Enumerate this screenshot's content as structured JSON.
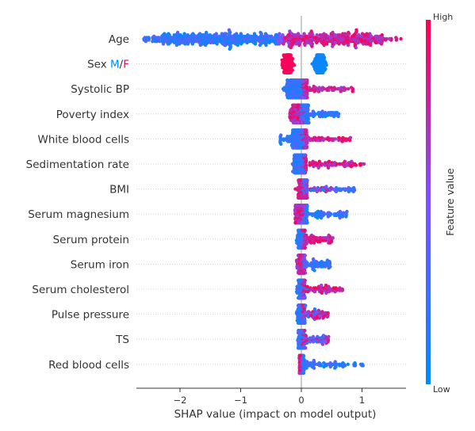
{
  "chart_data": {
    "type": "scatter",
    "subtype": "shap-beeswarm-summary",
    "xlabel": "SHAP value (impact on model output)",
    "xlim": [
      -2.8,
      1.8
    ],
    "x_ticks": [
      -2,
      -1,
      0,
      1
    ],
    "x_tick_labels": [
      "−2",
      "−1",
      "0",
      "1"
    ],
    "features": [
      {
        "name": "Age",
        "min": -2.6,
        "max": 1.65,
        "low_range": [
          -2.6,
          -0.4
        ],
        "high_range": [
          -0.3,
          1.65
        ],
        "core": [
          -2.3,
          1.35
        ]
      },
      {
        "name": "Sex",
        "label_parts": [
          "Sex ",
          "M",
          "/",
          "F"
        ],
        "min": -0.35,
        "max": 0.5,
        "clusters": [
          {
            "center": -0.22,
            "spread": 0.12,
            "color": "high"
          },
          {
            "center": 0.3,
            "spread": 0.14,
            "color": "low"
          }
        ]
      },
      {
        "name": "Systolic BP",
        "min": -0.3,
        "max": 0.85,
        "low_range": [
          -0.3,
          0.05
        ],
        "high_range": [
          0.0,
          0.85
        ],
        "core": [
          -0.25,
          0.1
        ]
      },
      {
        "name": "Poverty index",
        "min": -0.2,
        "max": 0.62,
        "low_range": [
          -0.05,
          0.62
        ],
        "high_range": [
          -0.2,
          0.05
        ],
        "core": [
          -0.15,
          0.12
        ]
      },
      {
        "name": "White blood cells",
        "min": -0.35,
        "max": 0.82,
        "low_range": [
          -0.35,
          0.05
        ],
        "high_range": [
          0.0,
          0.82
        ],
        "core": [
          -0.15,
          0.1
        ]
      },
      {
        "name": "Sedimentation rate",
        "min": -0.15,
        "max": 1.05,
        "low_range": [
          -0.15,
          0.05
        ],
        "high_range": [
          0.0,
          1.05
        ],
        "core": [
          -0.12,
          0.08
        ]
      },
      {
        "name": "BMI",
        "min": -0.1,
        "max": 0.88,
        "low_range": [
          0.0,
          0.88
        ],
        "high_range": [
          -0.1,
          0.55
        ],
        "core": [
          -0.05,
          0.1
        ]
      },
      {
        "name": "Serum magnesium",
        "min": -0.12,
        "max": 0.76,
        "low_range": [
          0.0,
          0.76
        ],
        "high_range": [
          -0.12,
          0.05
        ],
        "core": [
          -0.1,
          0.1
        ]
      },
      {
        "name": "Serum protein",
        "min": -0.08,
        "max": 0.52,
        "low_range": [
          -0.08,
          0.05
        ],
        "high_range": [
          0.0,
          0.52
        ],
        "core": [
          -0.05,
          0.06
        ]
      },
      {
        "name": "Serum iron",
        "min": -0.08,
        "max": 0.48,
        "low_range": [
          0.0,
          0.48
        ],
        "high_range": [
          -0.08,
          0.08
        ],
        "core": [
          -0.05,
          0.06
        ]
      },
      {
        "name": "Serum cholesterol",
        "min": -0.08,
        "max": 0.68,
        "low_range": [
          -0.08,
          0.1
        ],
        "high_range": [
          0.0,
          0.68
        ],
        "core": [
          -0.05,
          0.06
        ]
      },
      {
        "name": "Pulse pressure",
        "min": -0.08,
        "max": 0.47,
        "low_range": [
          -0.08,
          0.3
        ],
        "high_range": [
          0.0,
          0.47
        ],
        "core": [
          -0.05,
          0.06
        ]
      },
      {
        "name": "TS",
        "min": -0.06,
        "max": 0.45,
        "low_range": [
          -0.06,
          0.4
        ],
        "high_range": [
          0.0,
          0.45
        ],
        "core": [
          -0.05,
          0.05
        ]
      },
      {
        "name": "Red blood cells",
        "min": -0.05,
        "max": 1.1,
        "low_range": [
          0.0,
          1.1
        ],
        "high_range": [
          -0.05,
          0.03
        ],
        "core": [
          -0.03,
          0.04
        ]
      }
    ],
    "colorbar": {
      "label": "Feature value",
      "high_label": "High",
      "low_label": "Low",
      "colors": {
        "low": "#008bfb",
        "mid": "#7c52ff",
        "high": "#ff0052"
      }
    },
    "grid": "horizontal dotted",
    "legend": "colorbar-right"
  }
}
